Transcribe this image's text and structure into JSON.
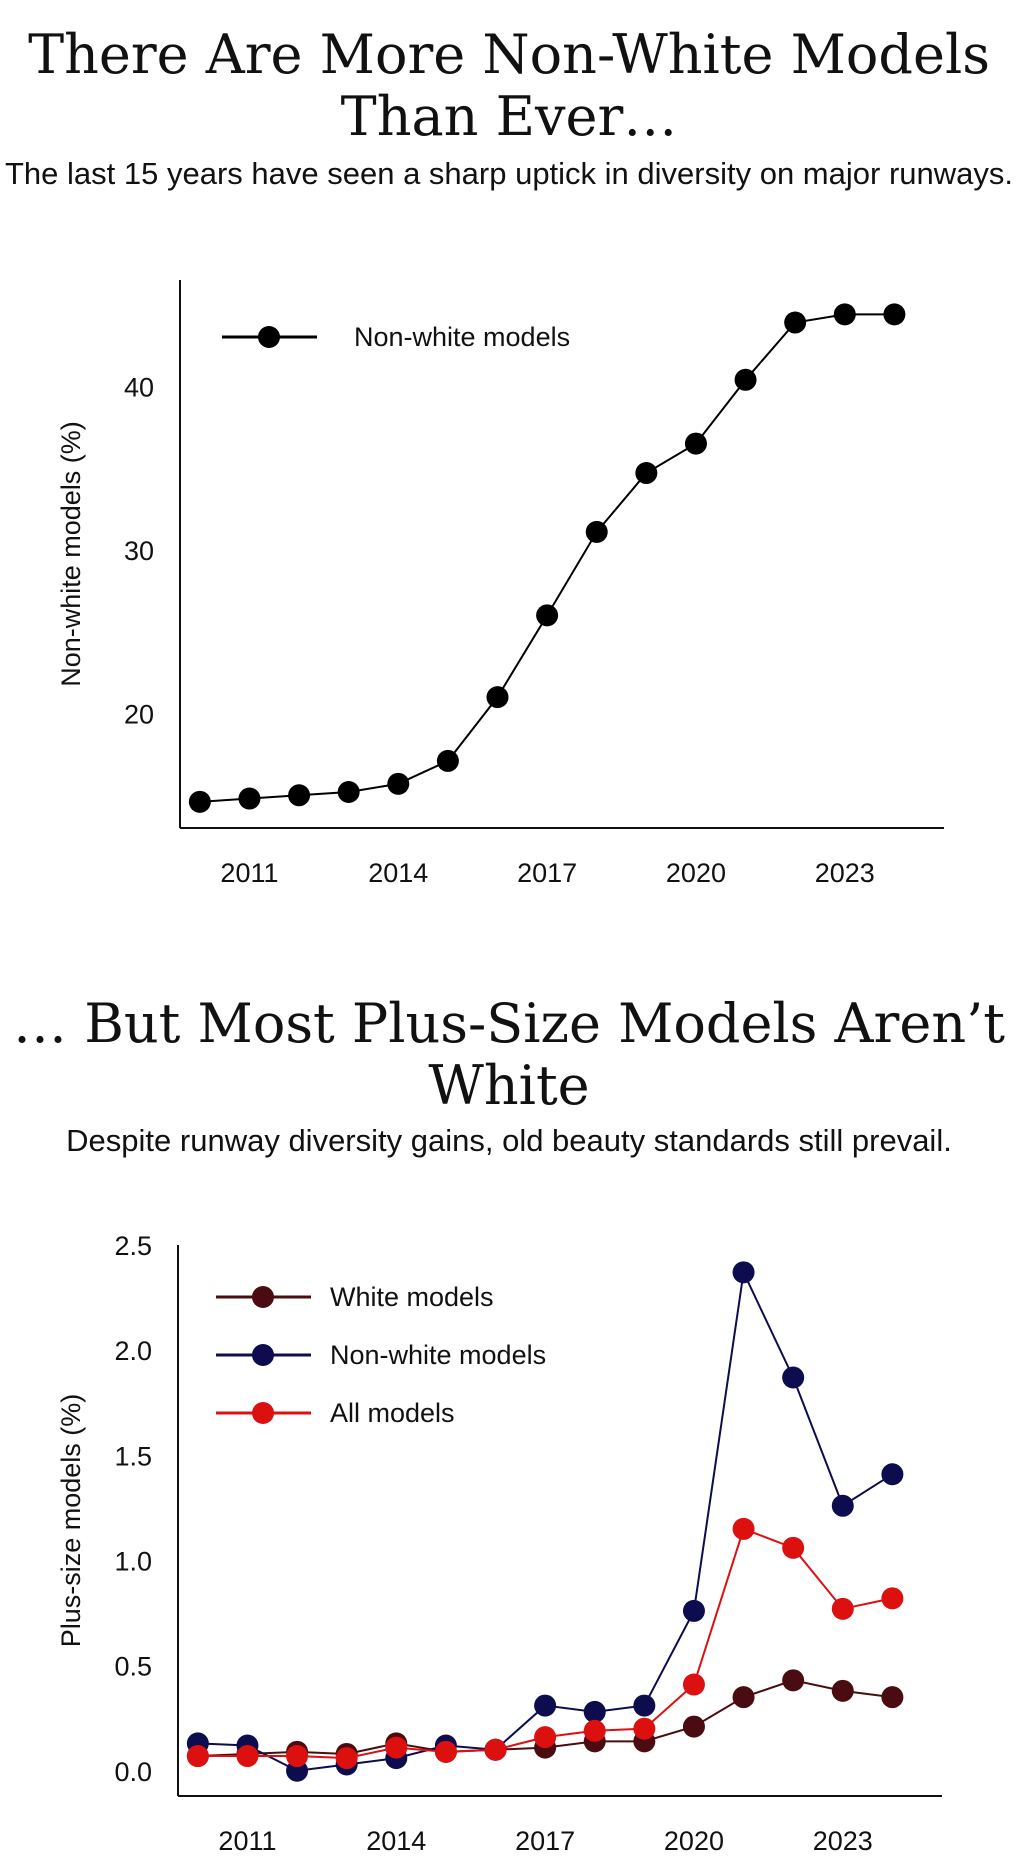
{
  "chart_data": [
    {
      "type": "line",
      "title": "There Are More Non-White Models Than Ever…",
      "subtitle": "The last 15 years have seen a sharp uptick in diversity on major runways.",
      "xlabel": "",
      "ylabel": "Non-white models (%)",
      "xlim": [
        2009.6,
        2025.0
      ],
      "ylim": [
        13.0,
        46.5
      ],
      "xticks": [
        2011,
        2014,
        2017,
        2020,
        2023
      ],
      "yticks": [
        20,
        30,
        40
      ],
      "x": [
        2010,
        2011,
        2012,
        2013,
        2014,
        2015,
        2016,
        2017,
        2018,
        2019,
        2020,
        2021,
        2022,
        2023,
        2024
      ],
      "series": [
        {
          "name": "Non-white models",
          "color": "#000000",
          "values": [
            14.6,
            14.8,
            15.0,
            15.2,
            15.7,
            17.1,
            21.0,
            26.0,
            31.1,
            34.7,
            36.5,
            40.4,
            43.9,
            44.4,
            44.4
          ]
        }
      ],
      "legend": "top-left",
      "grid": false
    },
    {
      "type": "line",
      "title": "… But Most Plus-Size Models Aren’t White",
      "subtitle": "Despite runway diversity gains, old beauty standards still prevail.",
      "xlabel": "",
      "ylabel": "Plus-size models (%)",
      "xlim": [
        2009.6,
        2025.0
      ],
      "ylim": [
        -0.12,
        2.5
      ],
      "xticks": [
        2011,
        2014,
        2017,
        2020,
        2023
      ],
      "yticks": [
        "0.0",
        "0.5",
        "1.0",
        "1.5",
        "2.0",
        "2.5"
      ],
      "x": [
        2010,
        2011,
        2012,
        2013,
        2014,
        2015,
        2016,
        2017,
        2018,
        2019,
        2020,
        2021,
        2022,
        2023,
        2024
      ],
      "series": [
        {
          "name": "White models",
          "color": "#4a0c10",
          "values": [
            0.07,
            0.08,
            0.09,
            0.08,
            0.13,
            0.09,
            0.1,
            0.11,
            0.14,
            0.14,
            0.21,
            0.35,
            0.43,
            0.38,
            0.35
          ]
        },
        {
          "name": "Non-white models",
          "color": "#0c0c4e",
          "values": [
            0.13,
            0.12,
            0.0,
            0.03,
            0.06,
            0.12,
            0.1,
            0.31,
            0.28,
            0.31,
            0.76,
            2.37,
            1.87,
            1.26,
            1.41
          ]
        },
        {
          "name": "All models",
          "color": "#dd1010",
          "values": [
            0.07,
            0.07,
            0.07,
            0.06,
            0.11,
            0.09,
            0.1,
            0.16,
            0.19,
            0.2,
            0.41,
            1.15,
            1.06,
            0.77,
            0.82
          ]
        }
      ],
      "legend": "top-left",
      "grid": false
    }
  ]
}
